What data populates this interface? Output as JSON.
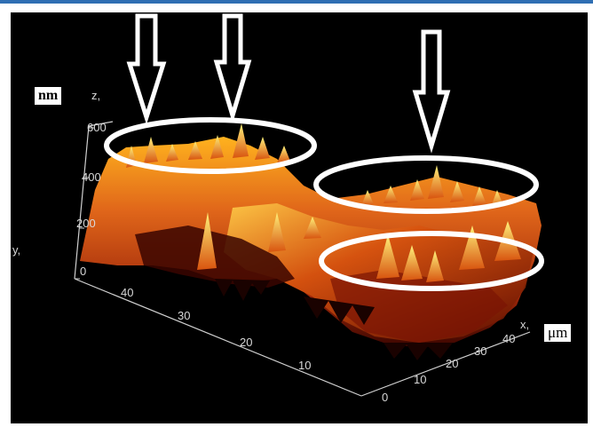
{
  "image": {
    "z_unit": "nm",
    "xy_unit": "μm",
    "axis_letters": {
      "z": "z,",
      "y": "y,",
      "x": "x,"
    },
    "z_ticks": [
      "0",
      "200",
      "400",
      "600"
    ],
    "y_ticks": [
      "10",
      "20",
      "30",
      "40"
    ],
    "x_ticks": [
      "0",
      "10",
      "20",
      "30",
      "40"
    ],
    "colors": {
      "background": "#000000",
      "surface_dark": "#5a0a00",
      "surface_mid": "#c0440c",
      "surface_bright": "#ffb21e",
      "highlight": "#fff27a",
      "annotation": "#ffffff",
      "top_bar": "#2f6fb3"
    },
    "annotations": {
      "arrows": 3,
      "ellipses": 3
    }
  }
}
